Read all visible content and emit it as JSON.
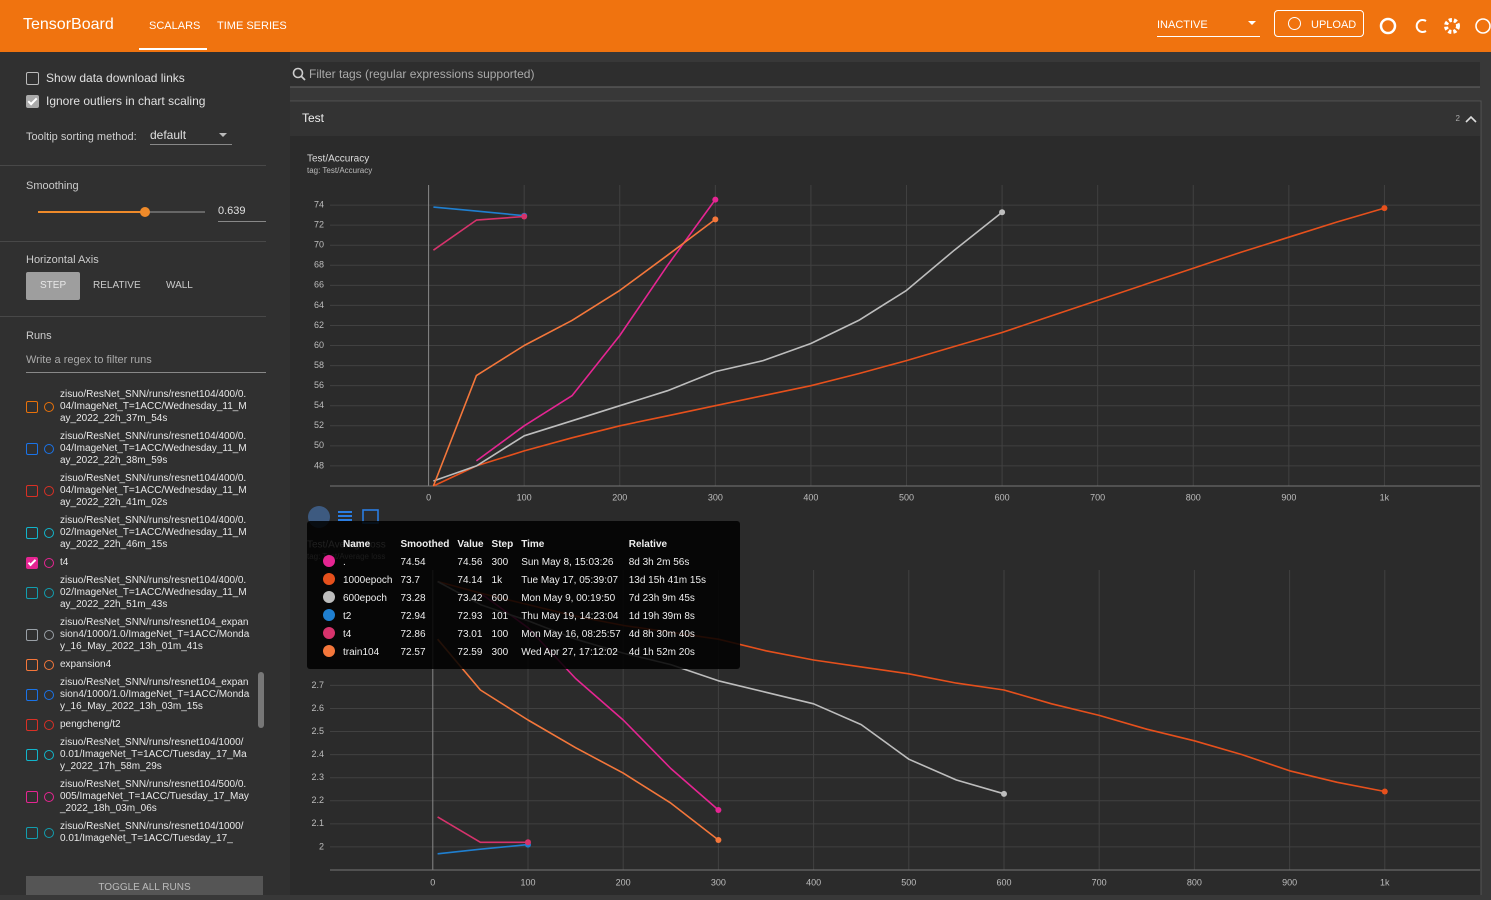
{
  "header": {
    "title": "TensorBoard",
    "tabs": [
      "SCALARS",
      "TIME SERIES"
    ],
    "active_tab": 0,
    "status": "INACTIVE",
    "upload": "UPLOAD"
  },
  "sidebar": {
    "options": [
      {
        "label": "Show data download links",
        "checked": false
      },
      {
        "label": "Ignore outliers in chart scaling",
        "checked": true
      }
    ],
    "tooltip_sorting": {
      "label": "Tooltip sorting method:",
      "value": "default"
    },
    "smoothing": {
      "label": "Smoothing",
      "value": 0.639
    },
    "horizontal_axis": {
      "label": "Horizontal Axis",
      "options": [
        "STEP",
        "RELATIVE",
        "WALL"
      ],
      "selected": 0
    },
    "runs": {
      "label": "Runs",
      "filter_placeholder": "Write a regex to filter runs",
      "items": [
        {
          "name": "zisuo/ResNet_SNN/runs/resnet104/400/0.04/ImageNet_T=1ACC/Wednesday_11_May_2022_22h_37m_54s",
          "color": "#e8710a",
          "checked": false
        },
        {
          "name": "zisuo/ResNet_SNN/runs/resnet104/400/0.04/ImageNet_T=1ACC/Wednesday_11_May_2022_22h_38m_59s",
          "color": "#1a73e8",
          "checked": false
        },
        {
          "name": "zisuo/ResNet_SNN/runs/resnet104/400/0.04/ImageNet_T=1ACC/Wednesday_11_May_2022_22h_41m_02s",
          "color": "#d93025",
          "checked": false
        },
        {
          "name": "zisuo/ResNet_SNN/runs/resnet104/400/0.02/ImageNet_T=1ACC/Wednesday_11_May_2022_22h_46m_15s",
          "color": "#12b5cb",
          "checked": false
        },
        {
          "name": "t4",
          "color": "#e52592",
          "checked": true
        },
        {
          "name": "zisuo/ResNet_SNN/runs/resnet104/400/0.02/ImageNet_T=1ACC/Wednesday_11_May_2022_22h_51m_43s",
          "color": "#129eaf",
          "checked": false
        },
        {
          "name": "zisuo/ResNet_SNN/runs/resnet104_expansion4/1000/1.0/ImageNet_T=1ACC/Monday_16_May_2022_13h_01m_41s",
          "color": "#9aa0a6",
          "checked": false
        },
        {
          "name": "expansion4",
          "color": "#f4773b",
          "checked": false
        },
        {
          "name": "zisuo/ResNet_SNN/runs/resnet104_expansion4/1000/1.0/ImageNet_T=1ACC/Monday_16_May_2022_13h_03m_15s",
          "color": "#1a73e8",
          "checked": false
        },
        {
          "name": "pengcheng/t2",
          "color": "#d93025",
          "checked": false
        },
        {
          "name": "zisuo/ResNet_SNN/runs/resnet104/1000/0.01/ImageNet_T=1ACC/Tuesday_17_May_2022_17h_58m_29s",
          "color": "#12b5cb",
          "checked": false
        },
        {
          "name": "zisuo/ResNet_SNN/runs/resnet104/500/0.005/ImageNet_T=1ACC/Tuesday_17_May_2022_18h_03m_06s",
          "color": "#e52592",
          "checked": false
        },
        {
          "name": "zisuo/ResNet_SNN/runs/resnet104/1000/0.01/ImageNet_T=1ACC/Tuesday_17_",
          "color": "#129eaf",
          "checked": false
        }
      ],
      "toggle": "TOGGLE ALL RUNS"
    }
  },
  "main": {
    "filter_placeholder": "Filter tags (regular expressions supported)",
    "group": {
      "title": "Test",
      "count": 2
    }
  },
  "chart_data": [
    {
      "type": "line",
      "title": "Test/Accuracy",
      "subtitle": "tag: Test/Accuracy",
      "x": [
        5,
        50,
        100,
        150,
        200,
        250,
        300,
        350,
        400,
        450,
        500,
        550,
        600,
        650,
        700,
        750,
        800,
        850,
        900,
        950,
        1000
      ],
      "series": [
        {
          "name": ".",
          "color": "#e52592",
          "values": [
            null,
            48.5,
            52,
            55,
            61,
            68,
            74.54,
            null,
            null,
            null,
            null,
            null,
            null,
            null,
            null,
            null,
            null,
            null,
            null,
            null,
            null
          ]
        },
        {
          "name": "1000epoch",
          "color": "#e6501c",
          "values": [
            46,
            48,
            49.5,
            50.8,
            52,
            53,
            54,
            55,
            56,
            57.2,
            58.5,
            59.9,
            61.3,
            62.9,
            64.5,
            66.1,
            67.7,
            69.3,
            70.8,
            72.3,
            73.7
          ]
        },
        {
          "name": "600epoch",
          "color": "#bdbdbd",
          "values": [
            46.5,
            48,
            51,
            52.5,
            54,
            55.5,
            57.4,
            58.5,
            60.2,
            62.5,
            65.5,
            69.5,
            73.28,
            null,
            null,
            null,
            null,
            null,
            null,
            null,
            null
          ]
        },
        {
          "name": "t2",
          "color": "#1f7fd0",
          "values": [
            73.8,
            73.4,
            72.94,
            null,
            null,
            null,
            null,
            null,
            null,
            null,
            null,
            null,
            null,
            null,
            null,
            null,
            null,
            null,
            null,
            null,
            null
          ]
        },
        {
          "name": "t4",
          "color": "#d6336c",
          "values": [
            69.5,
            72.5,
            72.86,
            null,
            null,
            null,
            null,
            null,
            null,
            null,
            null,
            null,
            null,
            null,
            null,
            null,
            null,
            null,
            null,
            null,
            null
          ]
        },
        {
          "name": "train104",
          "color": "#f4773b",
          "values": [
            46,
            57,
            60,
            62.5,
            65.5,
            69,
            72.57,
            null,
            null,
            null,
            null,
            null,
            null,
            null,
            null,
            null,
            null,
            null,
            null,
            null,
            null
          ]
        }
      ],
      "xlim": [
        -145,
        1100
      ],
      "ylim": [
        46,
        76
      ],
      "xticks": [
        0,
        100,
        200,
        300,
        400,
        500,
        600,
        700,
        800,
        900,
        {
          "value": 1000,
          "label": "1k"
        }
      ],
      "yticks": [
        48,
        50,
        52,
        54,
        56,
        58,
        60,
        62,
        64,
        66,
        68,
        70,
        72,
        74
      ],
      "grid": true,
      "tooltip": {
        "columns": [
          "Name",
          "Smoothed",
          "Value",
          "Step",
          "Time",
          "Relative"
        ],
        "rows": [
          [
            74.54,
            74.56,
            300,
            "Sun May 8, 15:03:26",
            "8d 3h 2m 56s"
          ],
          [
            73.7,
            74.14,
            "1k",
            "Tue May 17, 05:39:07",
            "13d 15h 41m 15s"
          ],
          [
            73.28,
            73.42,
            600,
            "Mon May 9, 00:19:50",
            "7d 23h 9m 45s"
          ],
          [
            72.94,
            72.93,
            101,
            "Thu May 19, 14:23:04",
            "1d 19h 39m 8s"
          ],
          [
            72.86,
            73.01,
            100,
            "Mon May 16, 08:25:57",
            "4d 8h 30m 40s"
          ],
          [
            72.57,
            72.59,
            300,
            "Wed Apr 27, 17:12:02",
            "4d 1h 52m 20s"
          ]
        ]
      }
    },
    {
      "type": "line",
      "title": "Test/Average loss",
      "subtitle": "tag: Test/Average loss",
      "x": [
        5,
        50,
        100,
        150,
        200,
        250,
        300,
        350,
        400,
        450,
        500,
        550,
        600,
        650,
        700,
        750,
        800,
        850,
        900,
        950,
        1000
      ],
      "series": [
        {
          "color": "#e52592",
          "values": [
            null,
            3.1,
            2.95,
            2.73,
            2.55,
            2.34,
            2.16,
            null,
            null,
            null,
            null,
            null,
            null,
            null,
            null,
            null,
            null,
            null,
            null,
            null,
            null
          ]
        },
        {
          "color": "#e6501c",
          "values": [
            3.15,
            3.1,
            3.05,
            3.0,
            2.96,
            2.93,
            2.9,
            2.85,
            2.81,
            2.78,
            2.75,
            2.71,
            2.68,
            2.62,
            2.57,
            2.51,
            2.46,
            2.4,
            2.33,
            2.28,
            2.24
          ]
        },
        {
          "color": "#bdbdbd",
          "values": [
            3.15,
            3.05,
            2.98,
            2.9,
            2.84,
            2.79,
            2.72,
            2.67,
            2.62,
            2.53,
            2.38,
            2.29,
            2.23,
            null,
            null,
            null,
            null,
            null,
            null,
            null,
            null
          ]
        },
        {
          "color": "#1f7fd0",
          "values": [
            1.97,
            1.99,
            2.01,
            null,
            null,
            null,
            null,
            null,
            null,
            null,
            null,
            null,
            null,
            null,
            null,
            null,
            null,
            null,
            null,
            null,
            null
          ]
        },
        {
          "color": "#d6336c",
          "values": [
            2.13,
            2.02,
            2.02,
            null,
            null,
            null,
            null,
            null,
            null,
            null,
            null,
            null,
            null,
            null,
            null,
            null,
            null,
            null,
            null,
            null,
            null
          ]
        },
        {
          "color": "#f4773b",
          "values": [
            2.9,
            2.68,
            2.55,
            2.43,
            2.32,
            2.19,
            2.03,
            null,
            null,
            null,
            null,
            null,
            null,
            null,
            null,
            null,
            null,
            null,
            null,
            null,
            null
          ]
        }
      ],
      "xlim": [
        -150,
        1100
      ],
      "ylim": [
        1.9,
        3.2
      ],
      "xticks": [
        0,
        100,
        200,
        300,
        400,
        500,
        600,
        700,
        800,
        900,
        {
          "value": 1000,
          "label": "1k"
        }
      ],
      "yticks": [
        2,
        2.1,
        2.2,
        2.3,
        2.4,
        2.5,
        2.6,
        2.7
      ],
      "grid": true
    }
  ]
}
